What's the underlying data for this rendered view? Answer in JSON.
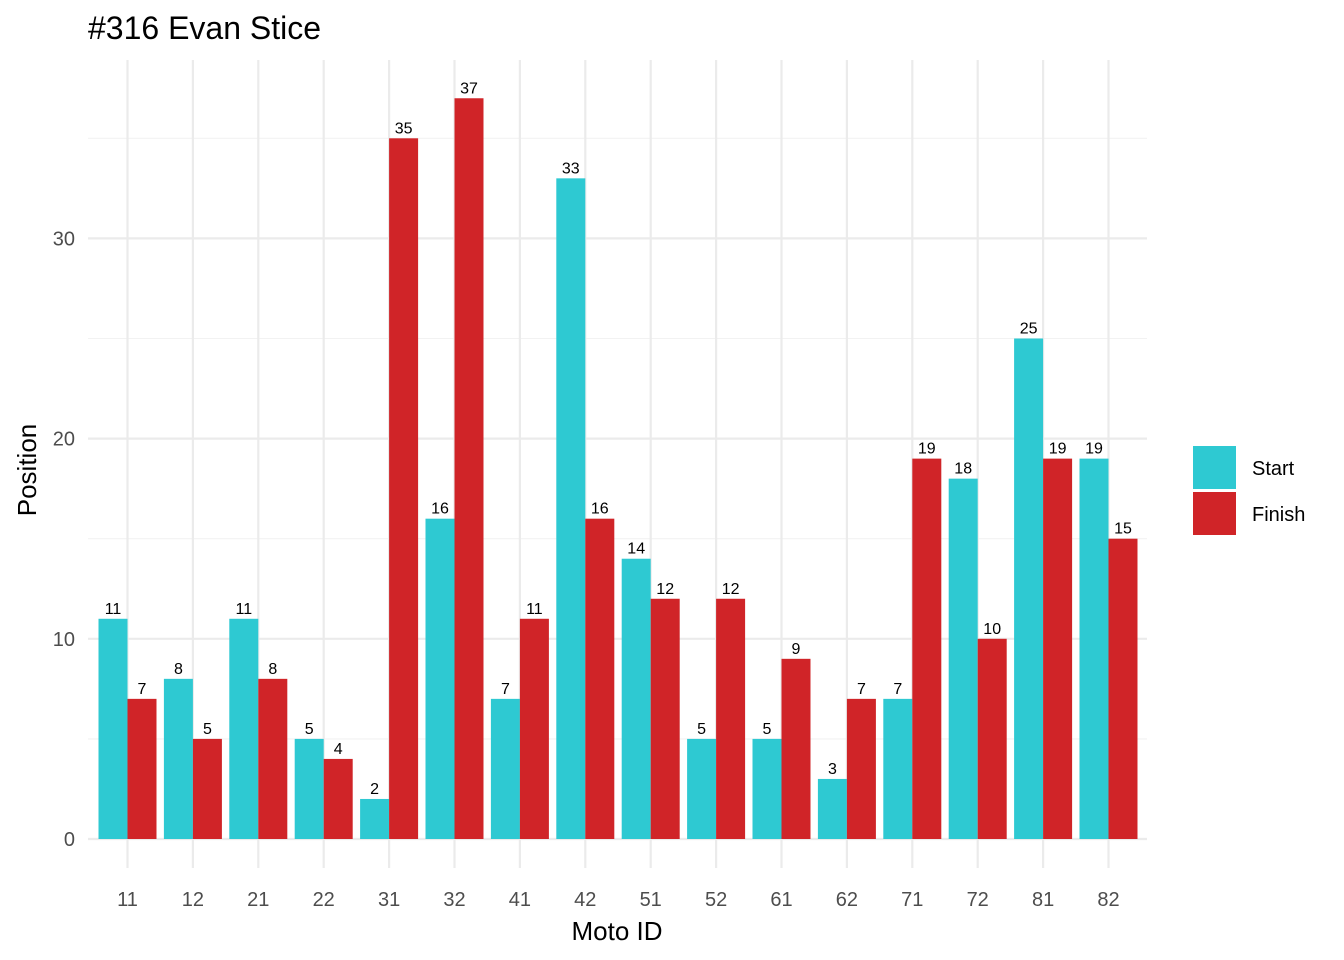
{
  "chart_data": {
    "type": "bar",
    "title": "#316 Evan Stice",
    "xlabel": "Moto ID",
    "ylabel": "Position",
    "categories": [
      "11",
      "12",
      "21",
      "22",
      "31",
      "32",
      "41",
      "42",
      "51",
      "52",
      "61",
      "62",
      "71",
      "72",
      "81",
      "82"
    ],
    "series": [
      {
        "name": "Start",
        "color": "#2ec9d2",
        "values": [
          11,
          8,
          11,
          5,
          2,
          16,
          7,
          33,
          14,
          5,
          5,
          3,
          7,
          18,
          25,
          19
        ]
      },
      {
        "name": "Finish",
        "color": "#d02428",
        "values": [
          7,
          5,
          8,
          4,
          35,
          37,
          11,
          16,
          12,
          12,
          9,
          7,
          19,
          10,
          19,
          15
        ]
      }
    ],
    "ylim": [
      0,
      37
    ],
    "yticks": [
      0,
      10,
      20,
      30
    ],
    "grid": true,
    "legend_position": "right"
  }
}
